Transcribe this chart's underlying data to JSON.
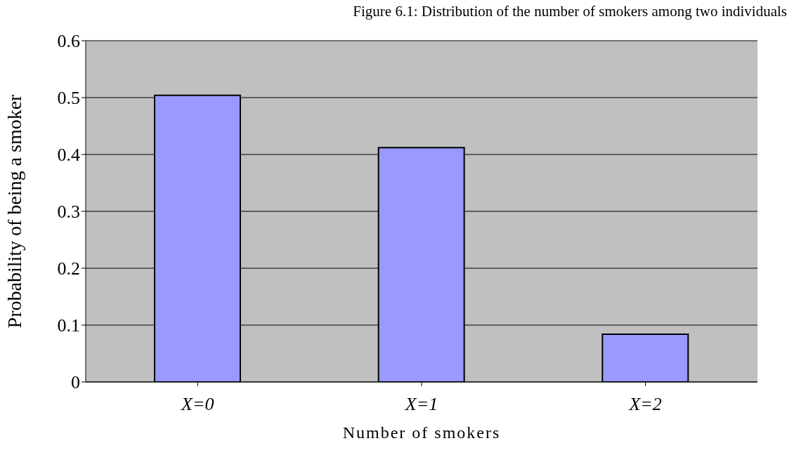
{
  "chart_data": {
    "type": "bar",
    "title": "Figure 6.1: Distribution of the number of smokers among two individuals",
    "xlabel": "Number of smokers",
    "ylabel": "Probability of being a smoker",
    "categories": [
      "X=0",
      "X=1",
      "X=2"
    ],
    "values": [
      0.504,
      0.412,
      0.084
    ],
    "color": "#9999ff",
    "ylim": [
      0,
      0.6
    ],
    "yticks": [
      0,
      0.1,
      0.2,
      0.3,
      0.4,
      0.5,
      0.6
    ],
    "grid": "y"
  }
}
